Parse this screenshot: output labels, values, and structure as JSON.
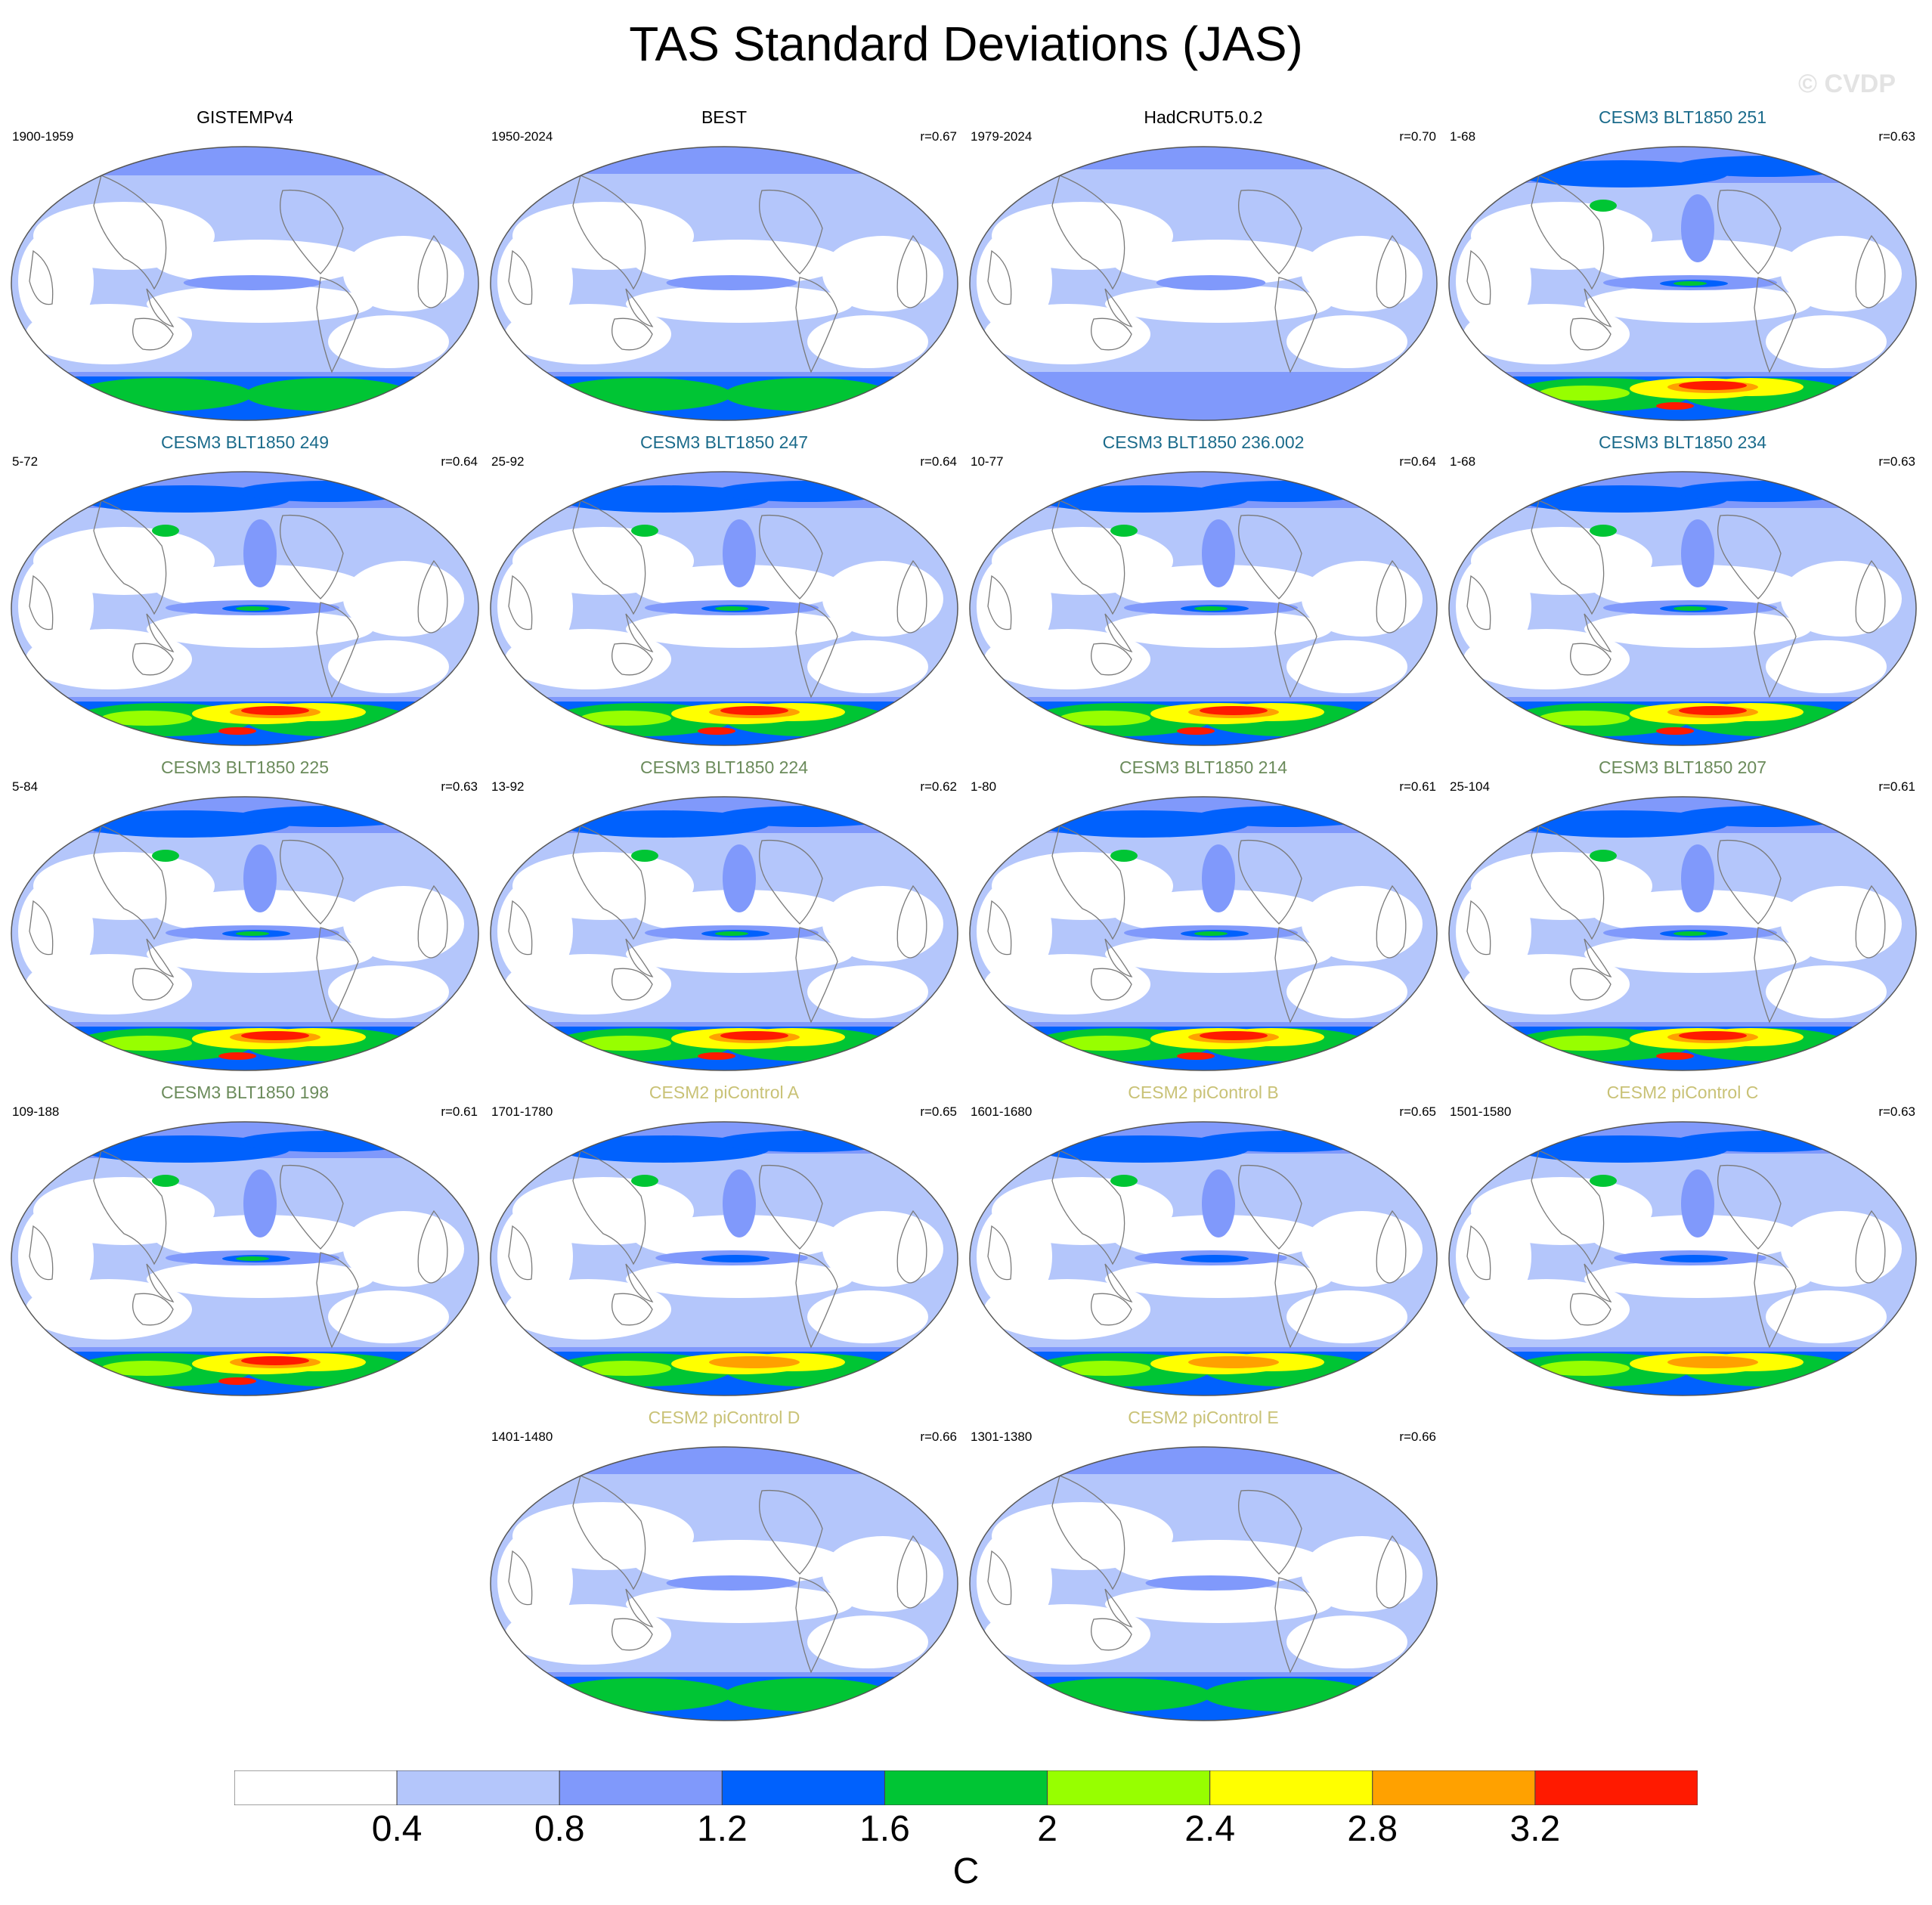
{
  "title": "TAS Standard Deviations (JAS)",
  "watermark": "© CVDP",
  "colors": {
    "levels": [
      "#ffffff",
      "#b4c6fb",
      "#8099fb",
      "#0061fd",
      "#00c534",
      "#97ff00",
      "#ffff00",
      "#ffa100",
      "#ff1a00"
    ],
    "title_obs": "#000000",
    "title_blt_251_234": "#1b6b8b",
    "title_blt_225_198": "#6b8b5b",
    "title_picontrol": "#c9c276",
    "coastline": "#7a7a7a"
  },
  "panels": [
    {
      "title": "GISTEMPv4",
      "years": "1900-1959",
      "r": "",
      "title_color": "#000000",
      "intensity": 0.75
    },
    {
      "title": "BEST",
      "years": "1950-2024",
      "r": "r=0.67",
      "title_color": "#000000",
      "intensity": 0.7
    },
    {
      "title": "HadCRUT5.0.2",
      "years": "1979-2024",
      "r": "r=0.70",
      "title_color": "#000000",
      "intensity": 0.55
    },
    {
      "title": "CESM3 BLT1850 251",
      "years": "1-68",
      "r": "r=0.63",
      "title_color": "#1b6b8b",
      "intensity": 1
    },
    {
      "title": "CESM3 BLT1850 249",
      "years": "5-72",
      "r": "r=0.64",
      "title_color": "#1b6b8b",
      "intensity": 1
    },
    {
      "title": "CESM3 BLT1850 247",
      "years": "25-92",
      "r": "r=0.64",
      "title_color": "#1b6b8b",
      "intensity": 1
    },
    {
      "title": "CESM3 BLT1850 236.002",
      "years": "10-77",
      "r": "r=0.64",
      "title_color": "#1b6b8b",
      "intensity": 1
    },
    {
      "title": "CESM3 BLT1850 234",
      "years": "1-68",
      "r": "r=0.63",
      "title_color": "#1b6b8b",
      "intensity": 1
    },
    {
      "title": "CESM3 BLT1850 225",
      "years": "5-84",
      "r": "r=0.63",
      "title_color": "#6b8b5b",
      "intensity": 1
    },
    {
      "title": "CESM3 BLT1850 224",
      "years": "13-92",
      "r": "r=0.62",
      "title_color": "#6b8b5b",
      "intensity": 1
    },
    {
      "title": "CESM3 BLT1850 214",
      "years": "1-80",
      "r": "r=0.61",
      "title_color": "#6b8b5b",
      "intensity": 1
    },
    {
      "title": "CESM3 BLT1850 207",
      "years": "25-104",
      "r": "r=0.61",
      "title_color": "#6b8b5b",
      "intensity": 1
    },
    {
      "title": "CESM3 BLT1850 198",
      "years": "109-188",
      "r": "r=0.61",
      "title_color": "#6b8b5b",
      "intensity": 1
    },
    {
      "title": "CESM2 piControl A",
      "years": "1701-1780",
      "r": "r=0.65",
      "title_color": "#c9c276",
      "intensity": 0.85
    },
    {
      "title": "CESM2 piControl B",
      "years": "1601-1680",
      "r": "r=0.65",
      "title_color": "#c9c276",
      "intensity": 0.85
    },
    {
      "title": "CESM2 piControl C",
      "years": "1501-1580",
      "r": "r=0.63",
      "title_color": "#c9c276",
      "intensity": 0.85
    },
    {
      "title": "CESM2 piControl D",
      "years": "1401-1480",
      "r": "r=0.66",
      "title_color": "#c9c276",
      "intensity": 0.7
    },
    {
      "title": "CESM2 piControl E",
      "years": "1301-1380",
      "r": "r=0.66",
      "title_color": "#c9c276",
      "intensity": 0.7
    }
  ],
  "chart_data": {
    "type": "heatmap",
    "title": "TAS Standard Deviations (JAS)",
    "colorbar": {
      "tick_labels": [
        "0.4",
        "0.8",
        "1.2",
        "1.6",
        "2",
        "2.4",
        "2.8",
        "3.2"
      ],
      "levels": [
        0.4,
        0.8,
        1.2,
        1.6,
        2.0,
        2.4,
        2.8,
        3.2
      ],
      "units": "C"
    }
  }
}
